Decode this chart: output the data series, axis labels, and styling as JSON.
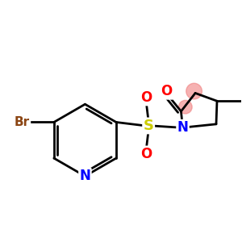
{
  "bg_color": "#ffffff",
  "atom_colors": {
    "C": "#000000",
    "N": "#0000ff",
    "O": "#ff0000",
    "S": "#cccc00",
    "Br": "#8B4513",
    "H": "#000000"
  },
  "bond_color": "#000000",
  "highlight_color": "#f08080",
  "figsize": [
    3.0,
    3.0
  ],
  "dpi": 100,
  "lw": 2.0
}
